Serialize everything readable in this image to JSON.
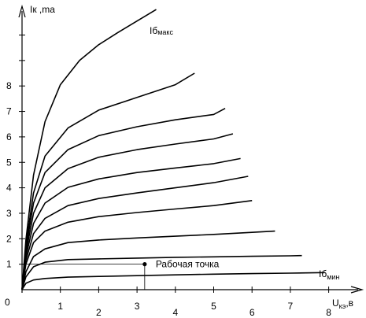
{
  "chart_data": {
    "type": "line",
    "ylabel": "Iк ,ma",
    "xlabel_main": "U",
    "xlabel_sub": "кэ",
    "xlabel_unit": ",в",
    "origin_label": "0",
    "xticks": [
      1,
      2,
      3,
      4,
      5,
      6,
      7,
      8
    ],
    "xtick_labels": [
      "1",
      "2",
      "3",
      "4",
      "5",
      "6",
      "7",
      "8"
    ],
    "yticks": [
      1,
      2,
      3,
      4,
      5,
      6,
      7,
      8,
      9,
      10
    ],
    "ytick_labels": [
      "1",
      "2",
      "3",
      "4",
      "5",
      "6",
      "7",
      "8",
      "",
      ""
    ],
    "xlim": [
      0,
      9.2
    ],
    "ylim": [
      0,
      11.6
    ],
    "series_label_max": {
      "main": "Iб",
      "sub": "макс"
    },
    "series_label_min": {
      "main": "Iб",
      "sub": "мин"
    },
    "operating_point": {
      "label": "Рабочая точка",
      "x": 3.2,
      "y": 1.0
    },
    "series": [
      {
        "x": [
          0,
          0.1,
          0.3,
          0.6,
          1.2,
          2.0,
          3.0,
          4.0,
          5.0,
          6.0,
          7.0,
          7.9
        ],
        "y": [
          0,
          0.25,
          0.38,
          0.44,
          0.49,
          0.52,
          0.55,
          0.58,
          0.61,
          0.63,
          0.65,
          0.67
        ]
      },
      {
        "x": [
          0,
          0.1,
          0.3,
          0.6,
          1.2,
          2.0,
          3.0,
          4.0,
          5.0,
          6.0,
          7.0,
          7.3
        ],
        "y": [
          0,
          0.5,
          0.9,
          1.08,
          1.18,
          1.21,
          1.24,
          1.27,
          1.29,
          1.31,
          1.33,
          1.34
        ]
      },
      {
        "x": [
          0,
          0.1,
          0.3,
          0.6,
          1.2,
          2.0,
          3.0,
          4.0,
          5.0,
          6.0,
          6.6
        ],
        "y": [
          0,
          0.7,
          1.3,
          1.6,
          1.85,
          1.95,
          2.03,
          2.1,
          2.17,
          2.25,
          2.3
        ]
      },
      {
        "x": [
          0,
          0.1,
          0.3,
          0.6,
          1.2,
          2.0,
          3.0,
          4.0,
          5.0,
          6.0
        ],
        "y": [
          0,
          1.0,
          1.85,
          2.3,
          2.65,
          2.87,
          3.03,
          3.17,
          3.3,
          3.5
        ]
      },
      {
        "x": [
          0,
          0.1,
          0.3,
          0.6,
          1.2,
          2.0,
          3.0,
          4.0,
          5.0,
          5.9
        ],
        "y": [
          0,
          1.15,
          2.2,
          2.8,
          3.3,
          3.58,
          3.8,
          4.0,
          4.2,
          4.45
        ]
      },
      {
        "x": [
          0,
          0.1,
          0.3,
          0.6,
          1.2,
          2.0,
          3.0,
          4.0,
          5.0,
          5.7
        ],
        "y": [
          0,
          1.3,
          2.6,
          3.4,
          4.02,
          4.35,
          4.6,
          4.78,
          4.95,
          5.15
        ]
      },
      {
        "x": [
          0,
          0.1,
          0.3,
          0.6,
          1.2,
          2.0,
          3.0,
          4.0,
          5.0,
          5.5
        ],
        "y": [
          0,
          1.45,
          3.0,
          4.0,
          4.75,
          5.2,
          5.5,
          5.72,
          5.92,
          6.12
        ]
      },
      {
        "x": [
          0,
          0.1,
          0.3,
          0.6,
          1.2,
          2.0,
          3.0,
          4.0,
          5.0,
          5.3
        ],
        "y": [
          0,
          1.6,
          3.4,
          4.6,
          5.5,
          6.05,
          6.4,
          6.67,
          6.88,
          7.12
        ]
      },
      {
        "x": [
          0,
          0.1,
          0.3,
          0.6,
          1.2,
          2.0,
          3.0,
          4.0,
          4.5
        ],
        "y": [
          0,
          1.75,
          3.8,
          5.25,
          6.35,
          7.05,
          7.55,
          8.05,
          8.5
        ]
      },
      {
        "x": [
          0,
          0.1,
          0.3,
          0.6,
          1.0,
          1.5,
          2.0,
          2.5,
          3.0,
          3.5
        ],
        "y": [
          0,
          1.95,
          4.5,
          6.6,
          8.05,
          9.0,
          9.62,
          10.1,
          10.55,
          11.0
        ]
      }
    ]
  }
}
